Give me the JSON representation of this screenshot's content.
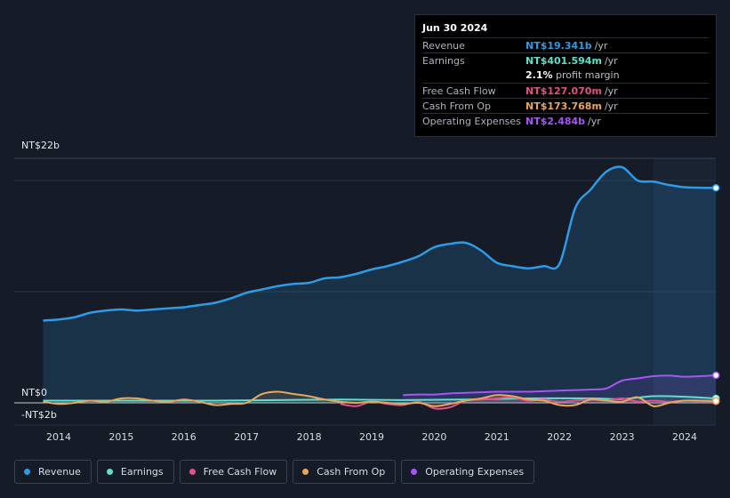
{
  "tooltip": {
    "date": "Jun 30 2024",
    "rows": [
      {
        "label": "Revenue",
        "value": "NT$19.341b",
        "unit": "/yr",
        "color": "#2f9ae6"
      },
      {
        "label": "Earnings",
        "value": "NT$401.594m",
        "unit": "/yr",
        "color": "#5fe0cb"
      },
      {
        "label": "",
        "margin_value": "2.1%",
        "margin_text": "profit margin"
      },
      {
        "label": "Free Cash Flow",
        "value": "NT$127.070m",
        "unit": "/yr",
        "color": "#e0518a"
      },
      {
        "label": "Cash From Op",
        "value": "NT$173.768m",
        "unit": "/yr",
        "color": "#e8a75a"
      },
      {
        "label": "Operating Expenses",
        "value": "NT$2.484b",
        "unit": "/yr",
        "color": "#a855f7"
      }
    ]
  },
  "legend": [
    {
      "label": "Revenue",
      "color": "#2f9ae6"
    },
    {
      "label": "Earnings",
      "color": "#5fe0cb"
    },
    {
      "label": "Free Cash Flow",
      "color": "#e0518a"
    },
    {
      "label": "Cash From Op",
      "color": "#e8a75a"
    },
    {
      "label": "Operating Expenses",
      "color": "#a855f7"
    }
  ],
  "chart_data": {
    "type": "line",
    "title": "",
    "xlabel": "",
    "ylabel": "",
    "y_unit": "NT$ billions",
    "xlim": [
      2013.0,
      2024.5
    ],
    "ylim": [
      -2,
      22
    ],
    "y_labels": [
      "NT$22b",
      "NT$0",
      "-NT$2b"
    ],
    "x_ticks": [
      "2014",
      "2015",
      "2016",
      "2017",
      "2018",
      "2019",
      "2020",
      "2021",
      "2022",
      "2023",
      "2024"
    ],
    "highlight_from": 2023.5,
    "series": [
      {
        "name": "Revenue",
        "color": "#2f9ae6",
        "fill": true,
        "x": [
          2013.75,
          2014.0,
          2014.25,
          2014.5,
          2014.75,
          2015.0,
          2015.25,
          2015.5,
          2015.75,
          2016.0,
          2016.25,
          2016.5,
          2016.75,
          2017.0,
          2017.25,
          2017.5,
          2017.75,
          2018.0,
          2018.25,
          2018.5,
          2018.75,
          2019.0,
          2019.25,
          2019.5,
          2019.75,
          2020.0,
          2020.25,
          2020.5,
          2020.75,
          2021.0,
          2021.25,
          2021.5,
          2021.75,
          2022.0,
          2022.25,
          2022.5,
          2022.75,
          2023.0,
          2023.25,
          2023.5,
          2023.75,
          2024.0,
          2024.25,
          2024.5
        ],
        "values": [
          7.4,
          7.5,
          7.7,
          8.1,
          8.3,
          8.4,
          8.3,
          8.4,
          8.5,
          8.6,
          8.8,
          9.0,
          9.4,
          9.9,
          10.2,
          10.5,
          10.7,
          10.8,
          11.2,
          11.3,
          11.6,
          12.0,
          12.3,
          12.7,
          13.2,
          14.0,
          14.3,
          14.4,
          13.7,
          12.6,
          12.3,
          12.1,
          12.3,
          12.5,
          17.5,
          19.2,
          20.8,
          21.2,
          20.0,
          19.9,
          19.6,
          19.4,
          19.35,
          19.34
        ]
      },
      {
        "name": "Earnings",
        "color": "#5fe0cb",
        "x": [
          2013.75,
          2014.5,
          2015.5,
          2016.5,
          2017.5,
          2018.5,
          2019.5,
          2020.5,
          2021.5,
          2022.5,
          2023.0,
          2023.5,
          2024.0,
          2024.5
        ],
        "values": [
          0.2,
          0.2,
          0.2,
          0.2,
          0.25,
          0.3,
          0.25,
          0.3,
          0.4,
          0.4,
          0.35,
          0.6,
          0.55,
          0.4
        ]
      },
      {
        "name": "Free Cash Flow",
        "color": "#e0518a",
        "x": [
          2018.5,
          2018.75,
          2019.0,
          2019.25,
          2019.5,
          2019.75,
          2020.0,
          2020.25,
          2020.5,
          2020.75,
          2021.0,
          2021.25,
          2021.5,
          2021.75,
          2022.0,
          2022.25,
          2022.5,
          2022.75,
          2023.0,
          2023.25,
          2023.5,
          2023.75,
          2024.0,
          2024.25,
          2024.5
        ],
        "values": [
          -0.1,
          -0.3,
          0.1,
          -0.1,
          -0.2,
          0.1,
          -0.5,
          -0.4,
          0.2,
          0.3,
          0.4,
          0.5,
          0.2,
          0.3,
          0.1,
          0.2,
          0.3,
          0.2,
          0.4,
          0.1,
          0.2,
          0.1,
          0.2,
          0.15,
          0.13
        ]
      },
      {
        "name": "Cash From Op",
        "color": "#e8a75a",
        "x": [
          2013.75,
          2014.0,
          2014.25,
          2014.5,
          2014.75,
          2015.0,
          2015.25,
          2015.5,
          2015.75,
          2016.0,
          2016.25,
          2016.5,
          2016.75,
          2017.0,
          2017.25,
          2017.5,
          2017.75,
          2018.0,
          2018.25,
          2018.5,
          2018.75,
          2019.0,
          2019.25,
          2019.5,
          2019.75,
          2020.0,
          2020.25,
          2020.5,
          2020.75,
          2021.0,
          2021.25,
          2021.5,
          2021.75,
          2022.0,
          2022.25,
          2022.5,
          2022.75,
          2023.0,
          2023.25,
          2023.5,
          2023.75,
          2024.0,
          2024.25,
          2024.5
        ],
        "values": [
          0.1,
          -0.1,
          0.0,
          0.2,
          0.1,
          0.4,
          0.4,
          0.2,
          0.1,
          0.3,
          0.1,
          -0.2,
          -0.1,
          0.0,
          0.8,
          1.0,
          0.8,
          0.6,
          0.3,
          0.1,
          0.0,
          0.1,
          0.0,
          -0.1,
          0.0,
          -0.3,
          -0.1,
          0.2,
          0.4,
          0.7,
          0.6,
          0.3,
          0.2,
          -0.2,
          -0.2,
          0.3,
          0.2,
          0.1,
          0.5,
          -0.3,
          0.0,
          0.2,
          0.2,
          0.17
        ]
      },
      {
        "name": "Operating Expenses",
        "color": "#a855f7",
        "x": [
          2019.5,
          2019.75,
          2020.0,
          2020.25,
          2020.5,
          2020.75,
          2021.0,
          2021.25,
          2021.5,
          2021.75,
          2022.0,
          2022.25,
          2022.5,
          2022.75,
          2023.0,
          2023.25,
          2023.5,
          2023.75,
          2024.0,
          2024.25,
          2024.5
        ],
        "values": [
          0.7,
          0.75,
          0.75,
          0.85,
          0.9,
          0.95,
          1.0,
          1.0,
          1.0,
          1.05,
          1.1,
          1.15,
          1.2,
          1.3,
          2.0,
          2.2,
          2.4,
          2.45,
          2.35,
          2.4,
          2.48
        ]
      }
    ]
  }
}
